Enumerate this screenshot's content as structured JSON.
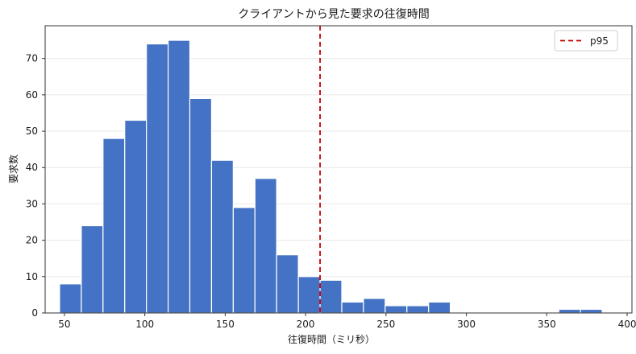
{
  "chart_data": {
    "type": "bar",
    "title": "クライアントから見た要求の往復時間",
    "xlabel": "往復時間（ミリ秒）",
    "ylabel": "要求数",
    "xlim": [
      38,
      403
    ],
    "ylim": [
      0,
      79
    ],
    "xticks": [
      50,
      100,
      150,
      200,
      250,
      300,
      350,
      400
    ],
    "yticks": [
      0,
      10,
      20,
      30,
      40,
      50,
      60,
      70
    ],
    "grid": "horizontal",
    "bins": [
      {
        "x0": 47,
        "x1": 60.5,
        "count": 8
      },
      {
        "x0": 60.5,
        "x1": 74,
        "count": 24
      },
      {
        "x0": 74,
        "x1": 87.5,
        "count": 48
      },
      {
        "x0": 87.5,
        "x1": 101,
        "count": 53
      },
      {
        "x0": 101,
        "x1": 114.5,
        "count": 74
      },
      {
        "x0": 114.5,
        "x1": 128,
        "count": 75
      },
      {
        "x0": 128,
        "x1": 141.5,
        "count": 59
      },
      {
        "x0": 141.5,
        "x1": 155,
        "count": 42
      },
      {
        "x0": 155,
        "x1": 168.5,
        "count": 29
      },
      {
        "x0": 168.5,
        "x1": 182,
        "count": 37
      },
      {
        "x0": 182,
        "x1": 195.5,
        "count": 16
      },
      {
        "x0": 195.5,
        "x1": 209,
        "count": 10
      },
      {
        "x0": 209,
        "x1": 222.5,
        "count": 9
      },
      {
        "x0": 222.5,
        "x1": 236,
        "count": 3
      },
      {
        "x0": 236,
        "x1": 249.5,
        "count": 4
      },
      {
        "x0": 249.5,
        "x1": 263,
        "count": 2
      },
      {
        "x0": 263,
        "x1": 276.5,
        "count": 2
      },
      {
        "x0": 276.5,
        "x1": 290,
        "count": 3
      },
      {
        "x0": 357.5,
        "x1": 371,
        "count": 1
      },
      {
        "x0": 371,
        "x1": 384.5,
        "count": 1
      }
    ],
    "reference_line": {
      "label": "p95",
      "x": 209,
      "color": "#cc0000"
    },
    "bar_color": "#4472c4",
    "legend_position": "top-right"
  }
}
